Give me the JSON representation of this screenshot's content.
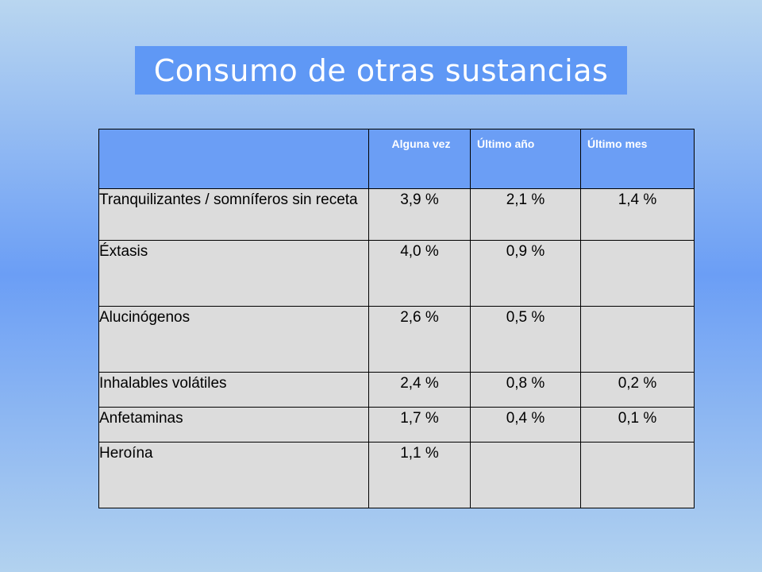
{
  "title": "Consumo de otras sustancias",
  "table": {
    "columns": [
      "Alguna vez",
      "Último año",
      "Último mes"
    ],
    "rows": [
      {
        "label": "Tranquilizantes / somníferos sin receta",
        "values": [
          "3,9 %",
          "2,1 %",
          "1,4 %"
        ]
      },
      {
        "label": "Éxtasis",
        "values": [
          "4,0 %",
          "0,9 %",
          ""
        ]
      },
      {
        "label": "Alucinógenos",
        "values": [
          "2,6 %",
          "0,5 %",
          ""
        ]
      },
      {
        "label": "Inhalables volátiles",
        "values": [
          "2,4 %",
          "0,8 %",
          "0,2 %"
        ]
      },
      {
        "label": "Anfetaminas",
        "values": [
          "1,7 %",
          "0,4 %",
          "0,1 %"
        ]
      },
      {
        "label": "Heroína",
        "values": [
          "1,1 %",
          "",
          ""
        ]
      }
    ]
  }
}
